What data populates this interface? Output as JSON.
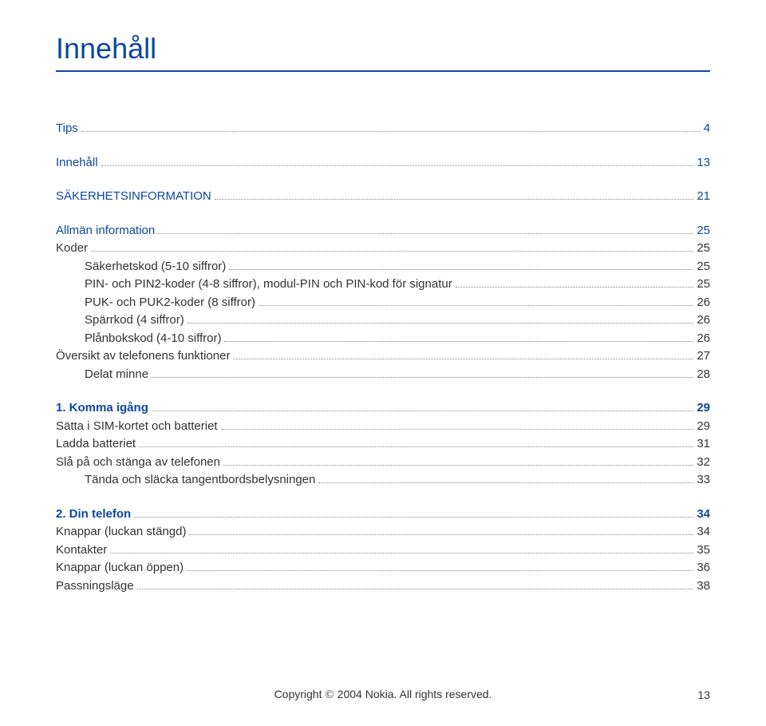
{
  "title": "Innehåll",
  "colors": {
    "heading": "#0d47a1",
    "rule": "#0d47a1",
    "body": "#333333",
    "dots": "#888888",
    "background": "#ffffff"
  },
  "toc": [
    {
      "label": "Tips",
      "page": "4",
      "level": 1,
      "blue": true,
      "bold": false,
      "spacerAfter": true
    },
    {
      "label": "Innehåll",
      "page": "13",
      "level": 1,
      "blue": true,
      "bold": false,
      "spacerAfter": true
    },
    {
      "label": "SÄKERHETSINFORMATION",
      "page": "21",
      "level": 1,
      "blue": true,
      "bold": false,
      "spacerAfter": true
    },
    {
      "label": "Allmän information",
      "page": "25",
      "level": 1,
      "blue": true,
      "bold": false,
      "spacerAfter": false
    },
    {
      "label": "Koder",
      "page": "25",
      "level": 1,
      "blue": false,
      "bold": false,
      "spacerAfter": false
    },
    {
      "label": "Säkerhetskod (5-10 siffror)",
      "page": "25",
      "level": 2,
      "blue": false,
      "bold": false,
      "spacerAfter": false
    },
    {
      "label": "PIN- och PIN2-koder (4-8 siffror), modul-PIN och PIN-kod för signatur",
      "page": "25",
      "level": 2,
      "blue": false,
      "bold": false,
      "spacerAfter": false
    },
    {
      "label": "PUK- och PUK2-koder (8 siffror)",
      "page": "26",
      "level": 2,
      "blue": false,
      "bold": false,
      "spacerAfter": false
    },
    {
      "label": "Spärrkod (4 siffror)",
      "page": "26",
      "level": 2,
      "blue": false,
      "bold": false,
      "spacerAfter": false
    },
    {
      "label": "Plånbokskod (4-10 siffror)",
      "page": "26",
      "level": 2,
      "blue": false,
      "bold": false,
      "spacerAfter": false
    },
    {
      "label": "Översikt av telefonens funktioner",
      "page": "27",
      "level": 1,
      "blue": false,
      "bold": false,
      "spacerAfter": false
    },
    {
      "label": "Delat minne",
      "page": "28",
      "level": 2,
      "blue": false,
      "bold": false,
      "spacerAfter": true
    },
    {
      "label": "1. Komma igång",
      "page": "29",
      "level": 1,
      "blue": true,
      "bold": true,
      "spacerAfter": false
    },
    {
      "label": "Sätta i SIM-kortet och batteriet",
      "page": "29",
      "level": 1,
      "blue": false,
      "bold": false,
      "spacerAfter": false
    },
    {
      "label": "Ladda batteriet",
      "page": "31",
      "level": 1,
      "blue": false,
      "bold": false,
      "spacerAfter": false
    },
    {
      "label": "Slå på och stänga av telefonen",
      "page": "32",
      "level": 1,
      "blue": false,
      "bold": false,
      "spacerAfter": false
    },
    {
      "label": "Tända och släcka tangentbordsbelysningen",
      "page": "33",
      "level": 2,
      "blue": false,
      "bold": false,
      "spacerAfter": true
    },
    {
      "label": "2. Din telefon",
      "page": "34",
      "level": 1,
      "blue": true,
      "bold": true,
      "spacerAfter": false
    },
    {
      "label": "Knappar (luckan stängd)",
      "page": "34",
      "level": 1,
      "blue": false,
      "bold": false,
      "spacerAfter": false
    },
    {
      "label": "Kontakter",
      "page": "35",
      "level": 1,
      "blue": false,
      "bold": false,
      "spacerAfter": false
    },
    {
      "label": "Knappar (luckan öppen)",
      "page": "36",
      "level": 1,
      "blue": false,
      "bold": false,
      "spacerAfter": false
    },
    {
      "label": "Passningsläge",
      "page": "38",
      "level": 1,
      "blue": false,
      "bold": false,
      "spacerAfter": false
    }
  ],
  "footer": {
    "copyright_prefix": "Copyright",
    "copyright_symbol": "©",
    "copyright_rest": "2004 Nokia. All rights reserved.",
    "pagenum": "13"
  }
}
